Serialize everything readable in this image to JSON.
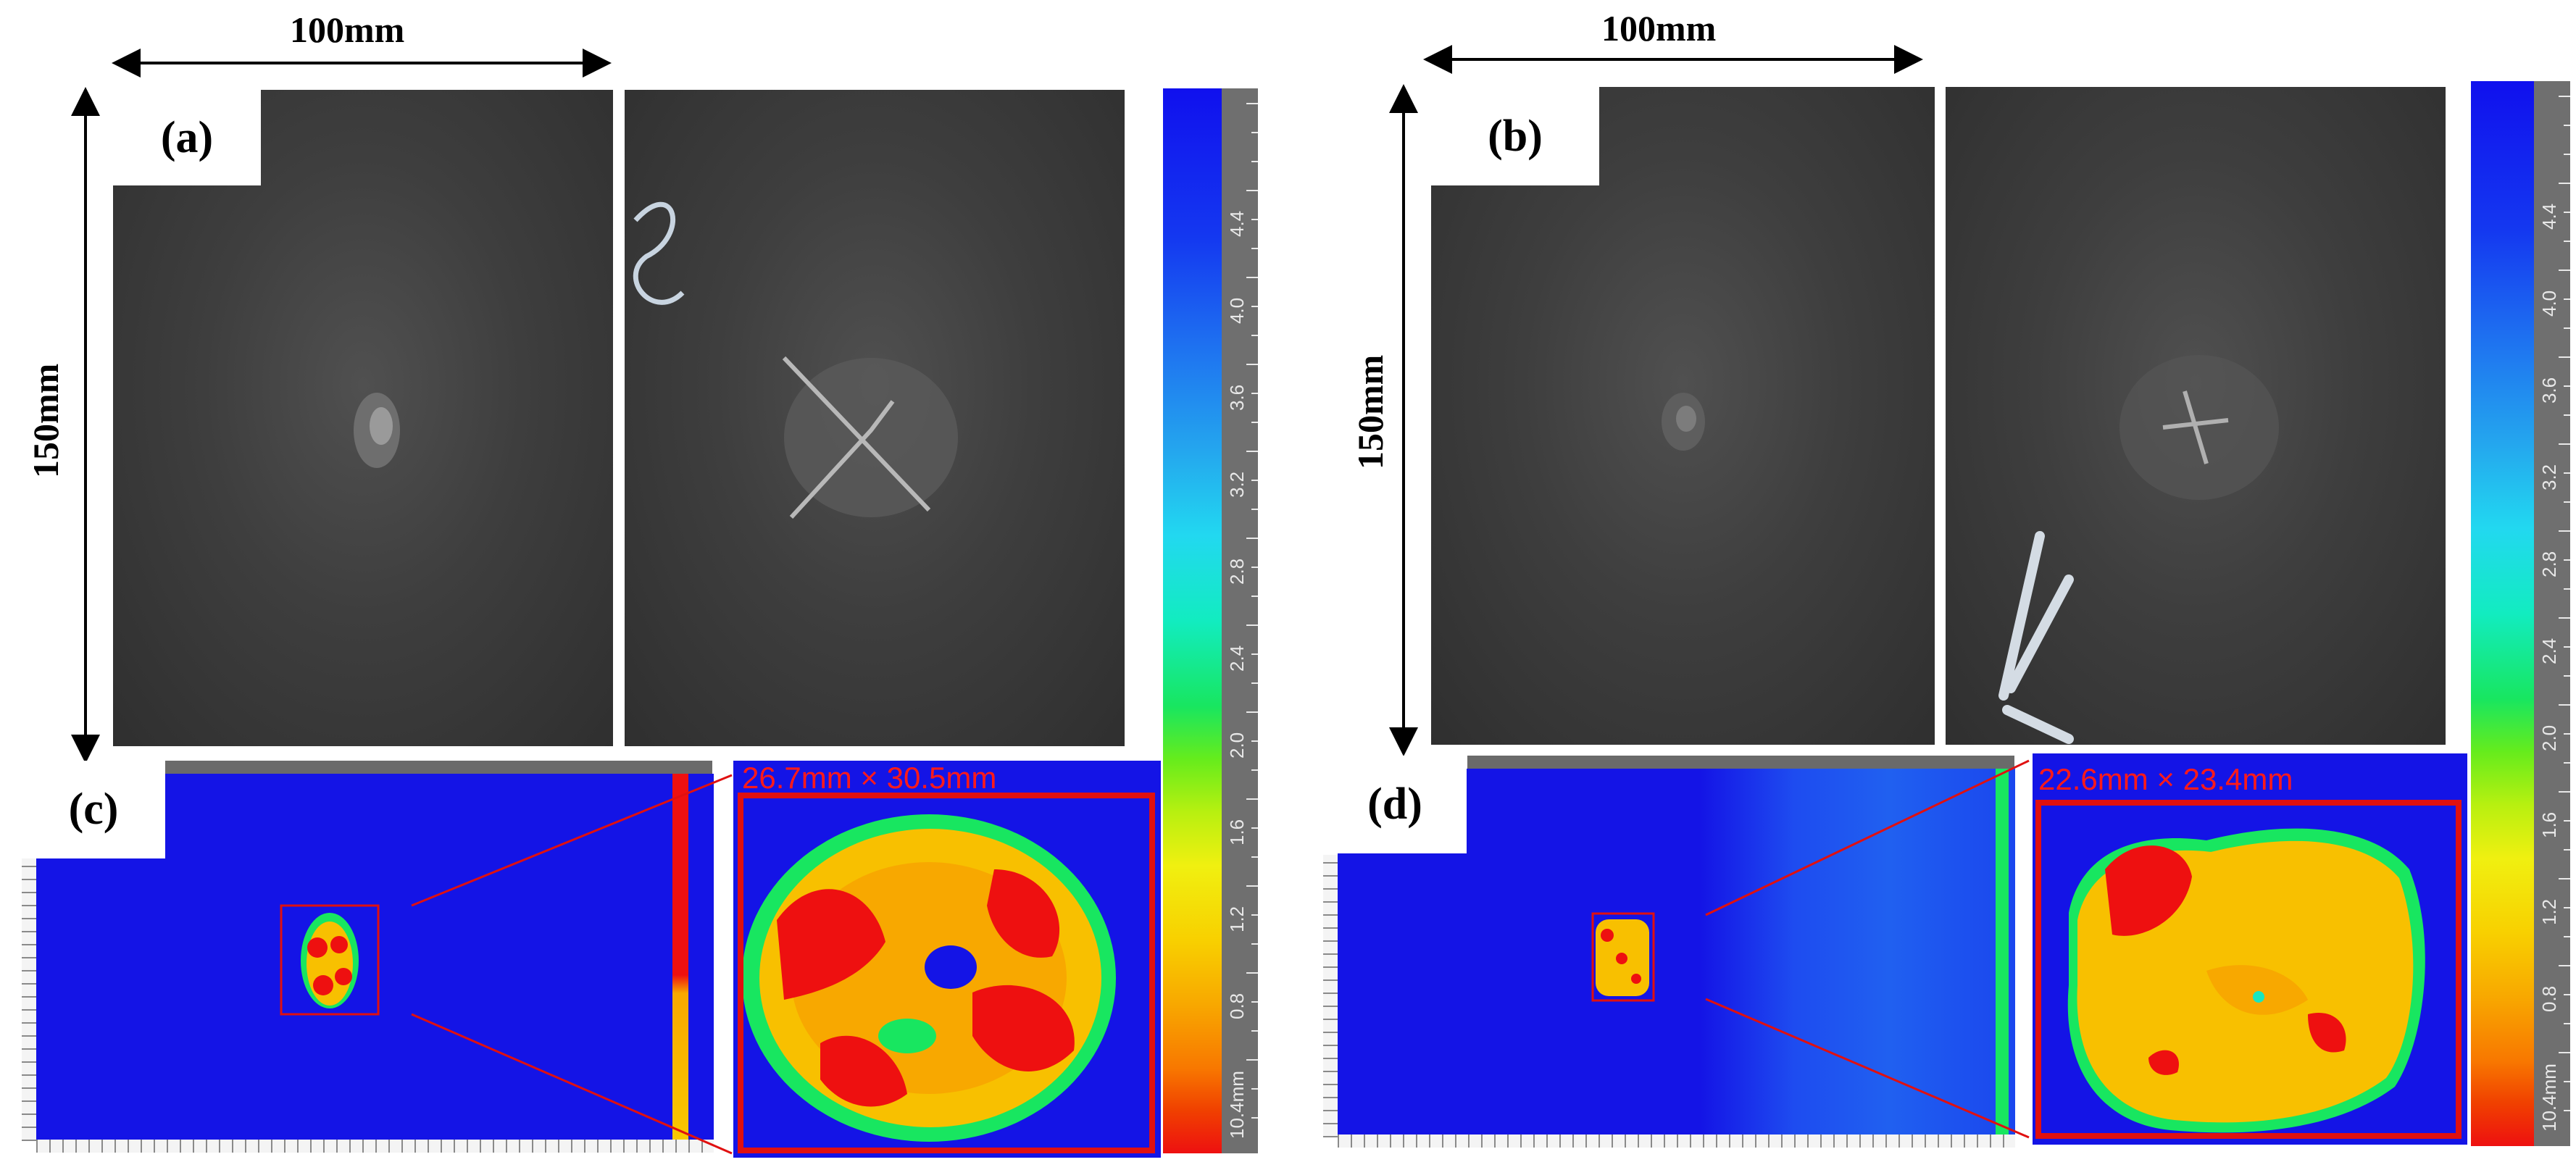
{
  "dimensions": {
    "width_left": "100mm",
    "width_right": "100mm",
    "height_left": "150mm",
    "height_right": "150mm"
  },
  "panels": {
    "a": "(a)",
    "b": "(b)",
    "c": "(c)",
    "d": "(d)"
  },
  "damage_size": {
    "c": "26.7mm × 30.5mm",
    "d": "22.6mm × 23.4mm"
  },
  "colorbar": {
    "labels": [
      "10.4mm",
      "0.8",
      "1.2",
      "1.6",
      "2.0",
      "2.4",
      "2.8",
      "3.2",
      "3.6",
      "4.0",
      "4.4"
    ],
    "colors": {
      "top": "#1010ee",
      "middle": "#12ecc0",
      "bottom": "#ee1010"
    }
  },
  "colors": {
    "damage_outline": "#e01010",
    "scan_background": "#1414e6"
  }
}
